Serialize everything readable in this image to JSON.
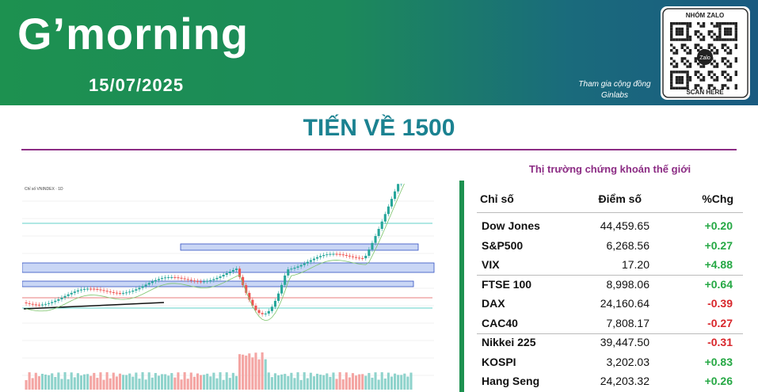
{
  "header": {
    "title": "G’morning",
    "date": "15/07/2025",
    "community": [
      "Tham gia cộng đồng",
      "Ginlabs"
    ],
    "qr": {
      "top": "NHÓM ZALO",
      "center": "Zalo",
      "bottom": "SCAN HERE"
    }
  },
  "headline": "TIẾN VỀ 1500",
  "chart": {
    "label": "Chỉ số VNINDEX · 1D"
  },
  "table": {
    "title": "Thị trường chứng khoán thế giới",
    "columns": [
      "Chỉ số",
      "Điểm số",
      "%Chg"
    ],
    "rows": [
      [
        "Dow Jones",
        "44,459.65",
        "+0.20"
      ],
      [
        "S&P500",
        "6,268.56",
        "+0.27"
      ],
      [
        "VIX",
        "17.20",
        "+4.88"
      ],
      [
        "FTSE 100",
        "8,998.06",
        "+0.64"
      ],
      [
        "DAX",
        "24,160.64",
        "-0.39"
      ],
      [
        "CAC40",
        "7,808.17",
        "-0.27"
      ],
      [
        "Nikkei 225",
        "39,447.50",
        "-0.31"
      ],
      [
        "KOSPI",
        "3,202.03",
        "+0.83"
      ],
      [
        "Hang Seng",
        "24,203.32",
        "+0.26"
      ]
    ]
  }
}
